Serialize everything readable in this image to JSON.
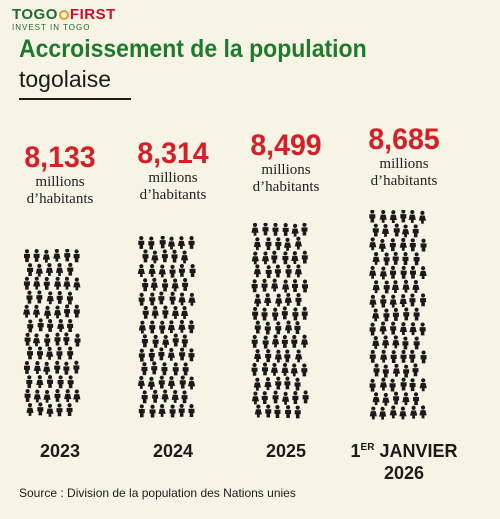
{
  "logo": {
    "part1": "TOGO",
    "part2": "FIRST",
    "tagline": "INVEST IN TOGO"
  },
  "title": "Accroissement de la population",
  "subtitle": "togolaise",
  "unit_line1": "millions",
  "unit_line2": "d’habitants",
  "source": "Source : Division de la population des Nations unies",
  "colors": {
    "title": "#1f7a2e",
    "value": "#d42027",
    "background": "#f7f4e6",
    "figure": "#1a1a1a"
  },
  "chart_data": {
    "type": "bar",
    "title": "Accroissement de la population togolaise",
    "ylabel": "millions d’habitants",
    "categories": [
      "2023",
      "2024",
      "2025",
      "1er janvier 2026"
    ],
    "values": [
      8.133,
      8.314,
      8.499,
      8.685
    ],
    "value_labels": [
      "8,133",
      "8,314",
      "8,499",
      "8,685"
    ],
    "year_labels": [
      {
        "pre": "",
        "sup": "",
        "main": "2023",
        "line2": ""
      },
      {
        "pre": "",
        "sup": "",
        "main": "2024",
        "line2": ""
      },
      {
        "pre": "",
        "sup": "",
        "main": "2025",
        "line2": ""
      },
      {
        "pre": "1",
        "sup": "ER",
        "main": " JANVIER",
        "line2": "2026"
      }
    ]
  }
}
